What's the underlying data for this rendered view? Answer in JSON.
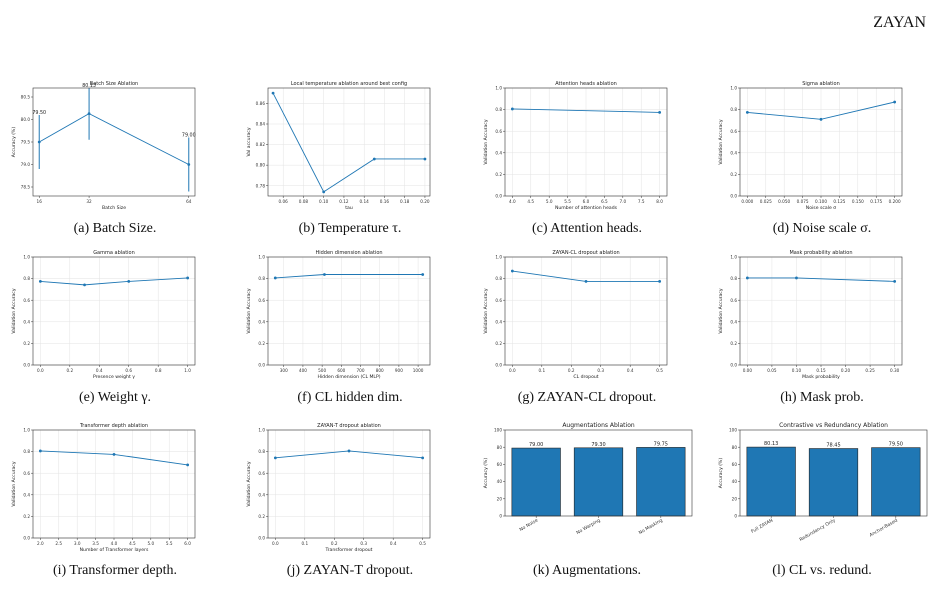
{
  "header": {
    "title": "ZAYAN"
  },
  "chart_data": [
    {
      "caption": "(a) Batch Size.",
      "type": "line",
      "title": "Batch Size Ablation",
      "xlabel": "Batch Size",
      "ylabel": "Accuracy (%)",
      "x": [
        16,
        32,
        64
      ],
      "y": [
        79.5,
        80.13,
        79.0
      ],
      "xlim": [
        14,
        66
      ],
      "ylim": [
        78.3,
        80.7
      ],
      "xticks": [
        16,
        32,
        64
      ],
      "yticks": [
        78.5,
        79.0,
        79.5,
        80.0,
        80.5
      ],
      "error_bars": [
        [
          78.9,
          80.1
        ],
        [
          79.55,
          80.7
        ],
        [
          78.4,
          79.6
        ]
      ],
      "point_labels": [
        "79.50",
        "80.13",
        "79.00"
      ],
      "grid": false
    },
    {
      "caption": "(b) Temperature τ.",
      "type": "line",
      "title": "Local temperature ablation around best config",
      "xlabel": "tau",
      "ylabel": "Val accuracy",
      "x": [
        0.05,
        0.1,
        0.15,
        0.2
      ],
      "y": [
        0.87,
        0.774,
        0.806,
        0.806
      ],
      "xlim": [
        0.045,
        0.205
      ],
      "ylim": [
        0.77,
        0.875
      ],
      "xticks": [
        0.06,
        0.08,
        0.1,
        0.12,
        0.14,
        0.16,
        0.18,
        0.2
      ],
      "yticks": [
        0.78,
        0.8,
        0.82,
        0.84,
        0.86
      ],
      "grid": true
    },
    {
      "caption": "(c) Attention heads.",
      "type": "line",
      "title": "Attention heads ablation",
      "xlabel": "Number of attention heads",
      "ylabel": "Validation Accuracy",
      "x": [
        4,
        8
      ],
      "y": [
        0.806,
        0.774
      ],
      "xlim": [
        3.8,
        8.2
      ],
      "ylim": [
        0,
        1.0
      ],
      "xticks": [
        4.0,
        4.5,
        5.0,
        5.5,
        6.0,
        6.5,
        7.0,
        7.5,
        8.0
      ],
      "yticks": [
        0.0,
        0.2,
        0.4,
        0.6,
        0.8,
        1.0
      ],
      "grid": true
    },
    {
      "caption": "(d) Noise scale σ.",
      "type": "line",
      "title": "Sigma ablation",
      "xlabel": "Noise scale σ",
      "ylabel": "Validation Accuracy",
      "x": [
        0.0,
        0.1,
        0.2
      ],
      "y": [
        0.774,
        0.71,
        0.87
      ],
      "xlim": [
        -0.01,
        0.21
      ],
      "ylim": [
        0,
        1.0
      ],
      "xticks": [
        0.0,
        0.025,
        0.05,
        0.075,
        0.1,
        0.125,
        0.15,
        0.175,
        0.2
      ],
      "yticks": [
        0.0,
        0.2,
        0.4,
        0.6,
        0.8,
        1.0
      ],
      "grid": true
    },
    {
      "caption": "(e) Weight γ.",
      "type": "line",
      "title": "Gamma ablation",
      "xlabel": "Presence weight γ",
      "ylabel": "Validation Accuracy",
      "x": [
        0.0,
        0.3,
        0.6,
        1.0
      ],
      "y": [
        0.774,
        0.742,
        0.774,
        0.806
      ],
      "xlim": [
        -0.05,
        1.05
      ],
      "ylim": [
        0,
        1.0
      ],
      "xticks": [
        0.0,
        0.2,
        0.4,
        0.6,
        0.8,
        1.0
      ],
      "yticks": [
        0.0,
        0.2,
        0.4,
        0.6,
        0.8,
        1.0
      ],
      "grid": true
    },
    {
      "caption": "(f) CL hidden dim.",
      "type": "line",
      "title": "Hidden dimension ablation",
      "xlabel": "Hidden dimension (CL MLP)",
      "ylabel": "Validation Accuracy",
      "x": [
        256,
        512,
        1024
      ],
      "y": [
        0.806,
        0.838,
        0.838
      ],
      "xlim": [
        218,
        1062
      ],
      "ylim": [
        0,
        1.0
      ],
      "xticks": [
        300,
        400,
        500,
        600,
        700,
        800,
        900,
        1000
      ],
      "yticks": [
        0.0,
        0.2,
        0.4,
        0.6,
        0.8,
        1.0
      ],
      "grid": true
    },
    {
      "caption": "(g) ZAYAN-CL dropout.",
      "type": "line",
      "title": "ZAYAN-CL dropout ablation",
      "xlabel": "CL dropout",
      "ylabel": "Validation Accuracy",
      "x": [
        0.0,
        0.25,
        0.5
      ],
      "y": [
        0.87,
        0.774,
        0.774
      ],
      "xlim": [
        -0.025,
        0.525
      ],
      "ylim": [
        0,
        1.0
      ],
      "xticks": [
        0.0,
        0.1,
        0.2,
        0.3,
        0.4,
        0.5
      ],
      "yticks": [
        0.0,
        0.2,
        0.4,
        0.6,
        0.8,
        1.0
      ],
      "grid": true
    },
    {
      "caption": "(h) Mask prob.",
      "type": "line",
      "title": "Mask probability ablation",
      "xlabel": "Mask probability",
      "ylabel": "Validation Accuracy",
      "x": [
        0.0,
        0.1,
        0.3
      ],
      "y": [
        0.806,
        0.806,
        0.774
      ],
      "xlim": [
        -0.015,
        0.315
      ],
      "ylim": [
        0,
        1.0
      ],
      "xticks": [
        0.0,
        0.05,
        0.1,
        0.15,
        0.2,
        0.25,
        0.3
      ],
      "yticks": [
        0.0,
        0.2,
        0.4,
        0.6,
        0.8,
        1.0
      ],
      "grid": true
    },
    {
      "caption": "(i) Transformer depth.",
      "type": "line",
      "title": "Transformer depth ablation",
      "xlabel": "Number of Transformer layers",
      "ylabel": "Validation Accuracy",
      "x": [
        2,
        4,
        6
      ],
      "y": [
        0.806,
        0.774,
        0.677
      ],
      "xlim": [
        1.8,
        6.2
      ],
      "ylim": [
        0,
        1.0
      ],
      "xticks": [
        2.0,
        2.5,
        3.0,
        3.5,
        4.0,
        4.5,
        5.0,
        5.5,
        6.0
      ],
      "yticks": [
        0.0,
        0.2,
        0.4,
        0.6,
        0.8,
        1.0
      ],
      "grid": true
    },
    {
      "caption": "(j) ZAYAN-T dropout.",
      "type": "line",
      "title": "ZAYAN-T dropout ablation",
      "xlabel": "Transformer dropout",
      "ylabel": "Validation Accuracy",
      "x": [
        0.0,
        0.25,
        0.5
      ],
      "y": [
        0.742,
        0.806,
        0.742
      ],
      "xlim": [
        -0.025,
        0.525
      ],
      "ylim": [
        0,
        1.0
      ],
      "xticks": [
        0.0,
        0.1,
        0.2,
        0.3,
        0.4,
        0.5
      ],
      "yticks": [
        0.0,
        0.2,
        0.4,
        0.6,
        0.8,
        1.0
      ],
      "grid": true
    },
    {
      "caption": "(k) Augmentations.",
      "type": "bar",
      "title": "Augmentations Ablation",
      "ylabel": "Accuracy (%)",
      "categories": [
        "No Noise",
        "No Warping",
        "No Masking"
      ],
      "values": [
        79.0,
        79.3,
        79.75
      ],
      "labels": [
        "79.00",
        "79.30",
        "79.75"
      ],
      "ylim": [
        0,
        100
      ],
      "yticks": [
        0,
        20,
        40,
        60,
        80,
        100
      ],
      "grid": false
    },
    {
      "caption": "(l) CL vs. redund.",
      "type": "bar",
      "title": "Contrastive vs Redundancy Ablation",
      "ylabel": "Accuracy (%)",
      "categories": [
        "Full ZAYAN",
        "Redundancy Only",
        "Anchor-Based"
      ],
      "values": [
        80.13,
        78.45,
        79.5
      ],
      "labels": [
        "80.13",
        "78.45",
        "79.50"
      ],
      "ylim": [
        0,
        100
      ],
      "yticks": [
        0,
        20,
        40,
        60,
        80,
        100
      ],
      "grid": false
    }
  ]
}
